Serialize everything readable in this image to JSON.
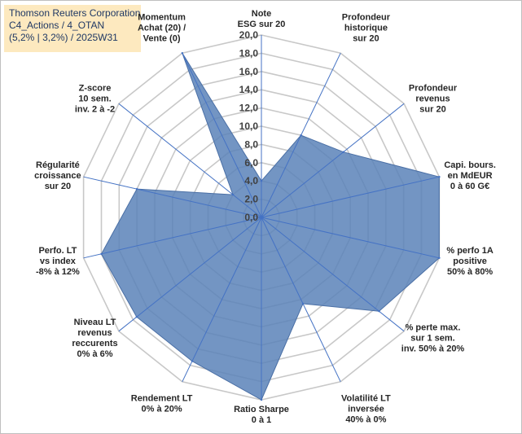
{
  "title_lines": [
    "Thomson Reuters Corporation",
    "C4_Actions / 4_OTAN",
    "(5,2% | 3,2%) / 2025W31"
  ],
  "chart_data": {
    "type": "radar",
    "axes": [
      [
        "Note",
        "ESG sur 20"
      ],
      [
        "Profondeur",
        "historique",
        "sur 20"
      ],
      [
        "Profondeur",
        "revenus",
        "sur 20"
      ],
      [
        "Capi. bours.",
        "en MdEUR",
        "0 à 60 G€"
      ],
      [
        "% perfo 1A",
        "positive",
        "50% à 80%"
      ],
      [
        "% perte max.",
        "sur 1 sem.",
        "inv. 50% à 20%"
      ],
      [
        "Volatilité LT",
        "inversée",
        "40% à 0%"
      ],
      [
        "Ratio Sharpe",
        "0 à 1"
      ],
      [
        "Rendement LT",
        "0% à 20%"
      ],
      [
        "Niveau LT",
        "revenus",
        "reccurents",
        "0% à 6%"
      ],
      [
        "Perfo. LT",
        "vs index",
        "-8% à 12%"
      ],
      [
        "Régularité",
        "croissance",
        "sur 20"
      ],
      [
        "Z-score",
        "10 sem.",
        "inv. 2 à -2"
      ],
      [
        "Momentum",
        "Achat (20) /",
        "Vente (0)"
      ]
    ],
    "values": [
      4.0,
      10.0,
      11.5,
      20.0,
      20.0,
      16.5,
      10.5,
      20.0,
      17.5,
      17.5,
      18.0,
      14.0,
      4.0,
      20.0
    ],
    "rmin": 0,
    "rmax": 20,
    "ticks": [
      "0,0",
      "2,0",
      "4,0",
      "6,0",
      "8,0",
      "10,0",
      "12,0",
      "14,0",
      "16,0",
      "18,0",
      "20,0"
    ],
    "tick_values": [
      0,
      2,
      4,
      6,
      8,
      10,
      12,
      14,
      16,
      18,
      20
    ],
    "series_color": "#5b82b8",
    "grid_color": "#c8c8c8",
    "spoke_color": "#4472c4",
    "title_bg": "#fde9bf",
    "title_color": "#1f3864"
  }
}
